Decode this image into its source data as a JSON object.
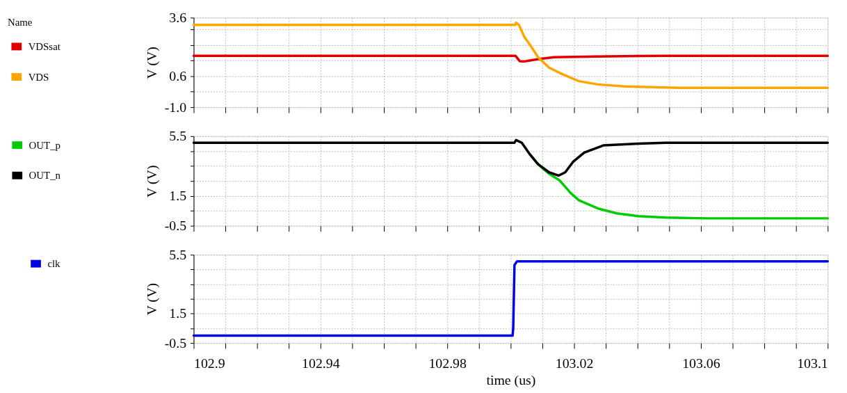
{
  "chart_data": [
    {
      "type": "line",
      "ylabel": "V (V)",
      "legend_title": "Name",
      "legend": "left",
      "grid": true,
      "tick_labels": "y",
      "xlim": [
        102.9,
        103.1
      ],
      "xticks": [
        102.9,
        {
          "value": 102.91,
          "label": null
        },
        {
          "value": 102.92,
          "label": null
        },
        {
          "value": 102.93,
          "label": null
        },
        102.94,
        {
          "value": 102.95,
          "label": null
        },
        {
          "value": 102.96,
          "label": null
        },
        {
          "value": 102.97,
          "label": null
        },
        102.98,
        {
          "value": 102.99,
          "label": null
        },
        {
          "value": 103.0,
          "label": null
        },
        {
          "value": 103.01,
          "label": null
        },
        103.02,
        {
          "value": 103.03,
          "label": null
        },
        {
          "value": 103.04,
          "label": null
        },
        {
          "value": 103.05,
          "label": null
        },
        103.06,
        {
          "value": 103.07,
          "label": null
        },
        {
          "value": 103.08,
          "label": null
        },
        {
          "value": 103.09,
          "label": null
        },
        103.1
      ],
      "ylim": [
        -1.0,
        3.6
      ],
      "yticks": [
        {
          "value": -1.0,
          "label": "-1.0"
        },
        {
          "value": -0.2,
          "label": null
        },
        0.6,
        {
          "value": 1.4,
          "label": null
        },
        {
          "value": 2.2,
          "label": null
        },
        {
          "value": 3.0,
          "label": null
        },
        3.6
      ],
      "series": [
        {
          "name": "VDSsat",
          "color": "#e00000",
          "x": [
            102.9,
            103.0015,
            103.0029,
            103.0043,
            103.0086,
            103.0137,
            103.0266,
            103.0403,
            103.049,
            103.1
          ],
          "values": [
            1.64,
            1.64,
            1.36,
            1.35,
            1.47,
            1.57,
            1.6,
            1.63,
            1.64,
            1.64
          ]
        },
        {
          "name": "VDS",
          "color": "#ffa500",
          "x": [
            102.9,
            103.0015,
            103.0017,
            103.0026,
            103.0043,
            103.0061,
            103.0086,
            103.0121,
            103.0164,
            103.0215,
            103.0275,
            103.036,
            103.053,
            103.1
          ],
          "values": [
            3.23,
            3.23,
            3.34,
            3.23,
            2.61,
            2.2,
            1.58,
            1.03,
            0.69,
            0.34,
            0.17,
            0.07,
            0.0,
            0.0
          ]
        }
      ]
    },
    {
      "type": "line",
      "ylabel": "V (V)",
      "legend": "left",
      "grid": true,
      "tick_labels": "y",
      "xlim": [
        102.9,
        103.1
      ],
      "xticks": [
        102.9,
        {
          "value": 102.91,
          "label": null
        },
        {
          "value": 102.92,
          "label": null
        },
        {
          "value": 102.93,
          "label": null
        },
        102.94,
        {
          "value": 102.95,
          "label": null
        },
        {
          "value": 102.96,
          "label": null
        },
        {
          "value": 102.97,
          "label": null
        },
        102.98,
        {
          "value": 102.99,
          "label": null
        },
        {
          "value": 103.0,
          "label": null
        },
        {
          "value": 103.01,
          "label": null
        },
        103.02,
        {
          "value": 103.03,
          "label": null
        },
        {
          "value": 103.04,
          "label": null
        },
        {
          "value": 103.05,
          "label": null
        },
        103.06,
        {
          "value": 103.07,
          "label": null
        },
        {
          "value": 103.08,
          "label": null
        },
        {
          "value": 103.09,
          "label": null
        },
        103.1
      ],
      "ylim": [
        -0.5,
        5.5
      ],
      "yticks": [
        -0.5,
        {
          "value": 0.5,
          "label": null
        },
        1.5,
        {
          "value": 2.5,
          "label": null
        },
        {
          "value": 3.5,
          "label": null
        },
        {
          "value": 4.5,
          "label": null
        },
        5.5
      ],
      "series": [
        {
          "name": "OUT_p",
          "color": "#00cc00",
          "x": [
            103.0061,
            103.0086,
            103.0103,
            103.0121,
            103.0155,
            103.0189,
            103.0215,
            103.0275,
            103.0335,
            103.0403,
            103.0489,
            103.0617,
            103.1
          ],
          "values": [
            4.27,
            3.63,
            3.3,
            2.99,
            2.53,
            1.7,
            1.21,
            0.66,
            0.33,
            0.15,
            0.05,
            0.0,
            0.0
          ]
        },
        {
          "name": "OUT_n",
          "color": "#000000",
          "x": [
            102.9,
            103.0012,
            103.0017,
            103.0035,
            103.0061,
            103.0086,
            103.0121,
            103.0151,
            103.0172,
            103.0198,
            103.0232,
            103.0292,
            103.0403,
            103.0489,
            103.1
          ],
          "values": [
            5.06,
            5.06,
            5.24,
            5.06,
            4.27,
            3.63,
            3.08,
            2.86,
            3.08,
            3.81,
            4.4,
            4.88,
            5.0,
            5.06,
            5.06
          ]
        }
      ]
    },
    {
      "type": "line",
      "ylabel": "V (V)",
      "xlabel": "time (us)",
      "legend": "left",
      "grid": true,
      "xlim": [
        102.9,
        103.1
      ],
      "xticks": [
        102.9,
        {
          "value": 102.91,
          "label": null
        },
        {
          "value": 102.92,
          "label": null
        },
        {
          "value": 102.93,
          "label": null
        },
        102.94,
        {
          "value": 102.95,
          "label": null
        },
        {
          "value": 102.96,
          "label": null
        },
        {
          "value": 102.97,
          "label": null
        },
        102.98,
        {
          "value": 102.99,
          "label": null
        },
        {
          "value": 103.0,
          "label": null
        },
        {
          "value": 103.01,
          "label": null
        },
        103.02,
        {
          "value": 103.03,
          "label": null
        },
        {
          "value": 103.04,
          "label": null
        },
        {
          "value": 103.05,
          "label": null
        },
        103.06,
        {
          "value": 103.07,
          "label": null
        },
        {
          "value": 103.08,
          "label": null
        },
        {
          "value": 103.09,
          "label": null
        },
        103.1
      ],
      "ylim": [
        -0.5,
        5.5
      ],
      "yticks": [
        -0.5,
        {
          "value": 0.5,
          "label": null
        },
        1.5,
        {
          "value": 2.5,
          "label": null
        },
        {
          "value": 3.5,
          "label": null
        },
        {
          "value": 4.5,
          "label": null
        },
        5.5
      ],
      "series": [
        {
          "name": "clk",
          "color": "#0000e0",
          "x": [
            102.9,
            103.0006,
            103.0008,
            103.0012,
            103.002,
            103.1
          ],
          "values": [
            0.0,
            0.0,
            0.5,
            4.8,
            5.05,
            5.05
          ]
        }
      ]
    }
  ]
}
